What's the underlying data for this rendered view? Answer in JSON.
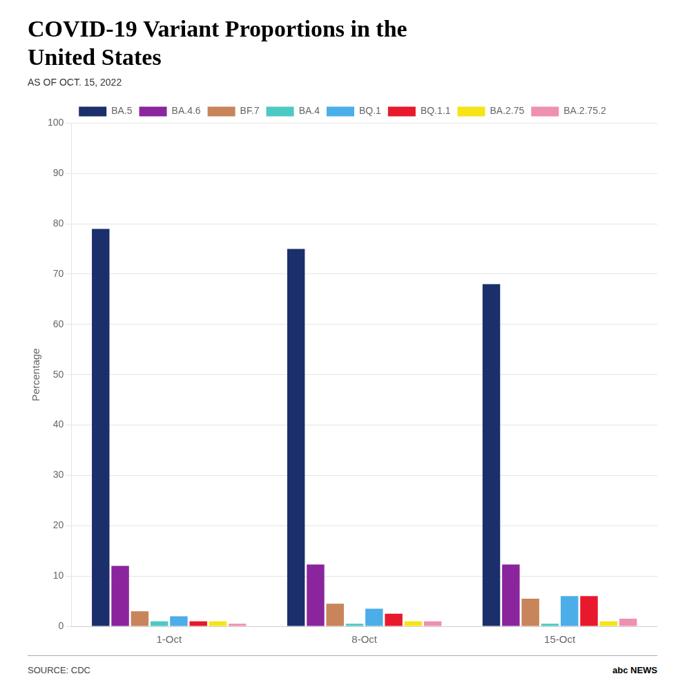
{
  "chart_data": {
    "type": "bar",
    "title": [
      "COVID-19 Variant Proportions in the",
      "United States"
    ],
    "subtitle": "AS OF OCT. 15, 2022",
    "ylabel": "Percentage",
    "annotations": [
      "SOURCE: CDC",
      "abc NEWS"
    ],
    "categories": [
      "1-Oct",
      "8-Oct",
      "15-Oct"
    ],
    "series": [
      {
        "name": "BA.5",
        "color": "#1a2f6b",
        "values": [
          79.0,
          75.0,
          68.0
        ]
      },
      {
        "name": "BA.4.6",
        "color": "#8b259e",
        "values": [
          12.0,
          12.3,
          12.3
        ]
      },
      {
        "name": "BF.7",
        "color": "#c8845a",
        "values": [
          3.0,
          4.5,
          5.5
        ]
      },
      {
        "name": "BA.4",
        "color": "#4dc9c4",
        "values": [
          1.0,
          0.5,
          0.5
        ]
      },
      {
        "name": "BQ.1",
        "color": "#4baee8",
        "values": [
          2.0,
          3.5,
          6.0
        ]
      },
      {
        "name": "BQ.1.1",
        "color": "#e8192c",
        "values": [
          1.0,
          2.5,
          6.0
        ]
      },
      {
        "name": "BA.2.75",
        "color": "#f5e418",
        "values": [
          1.0,
          1.0,
          1.0
        ]
      },
      {
        "name": "BA.2.75.2",
        "color": "#f090b0",
        "values": [
          0.5,
          1.0,
          1.5
        ]
      }
    ],
    "ylim": [
      0,
      100
    ],
    "yticks": [
      0,
      10,
      20,
      30,
      40,
      50,
      60,
      70,
      80,
      90,
      100
    ],
    "grid": true,
    "legend": "top"
  }
}
